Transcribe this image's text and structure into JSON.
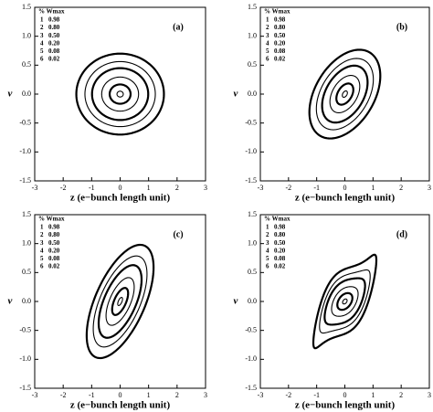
{
  "chart_data": [
    {
      "type": "contour",
      "panel_label": "(a)",
      "xlabel": "z (e−bunch length unit)",
      "ylabel": "ν",
      "xlim": [
        -3,
        3
      ],
      "ylim": [
        -1.5,
        1.5
      ],
      "xticks": [
        -3,
        -2,
        -1,
        0,
        1,
        2,
        3
      ],
      "yticks": [
        {
          "value": -1.5,
          "label": "-1.5"
        },
        {
          "value": -1,
          "label": "-1.0"
        },
        -0.5,
        {
          "value": 0,
          "label": "0.0"
        },
        0.5,
        {
          "value": 1,
          "label": "1.0"
        },
        1.5
      ],
      "legend_title": "% Wmax",
      "level_ids": [
        "1",
        "2",
        "3",
        "4",
        "5",
        "6"
      ],
      "levels": [
        0.98,
        0.8,
        0.5,
        0.2,
        0.08,
        0.02
      ],
      "level_labels": [
        "0.98",
        "0.80",
        "0.50",
        "0.20",
        "0.08",
        "0.02"
      ],
      "color": "#000000"
    },
    {
      "type": "contour",
      "panel_label": "(b)",
      "xlabel": "z (e−bunch length unit)",
      "ylabel": "ν",
      "xlim": [
        -3,
        3
      ],
      "ylim": [
        -1.5,
        1.5
      ],
      "xticks": [
        -3,
        -2,
        -1,
        0,
        1,
        2,
        3
      ],
      "yticks": [
        {
          "value": -1.5,
          "label": "-1.5"
        },
        {
          "value": -1,
          "label": "-1.0"
        },
        -0.5,
        {
          "value": 0,
          "label": "0.0"
        },
        0.5,
        {
          "value": 1,
          "label": "1.0"
        },
        1.5
      ],
      "legend_title": "% Wmax",
      "level_ids": [
        "1",
        "2",
        "3",
        "4",
        "5",
        "6"
      ],
      "levels": [
        0.98,
        0.8,
        0.5,
        0.2,
        0.08,
        0.02
      ],
      "level_labels": [
        "0.98",
        "0.80",
        "0.50",
        "0.20",
        "0.08",
        "0.02"
      ],
      "color": "#000000"
    },
    {
      "type": "contour",
      "panel_label": "(c)",
      "xlabel": "z (e−bunch length unit)",
      "ylabel": "ν",
      "xlim": [
        -3,
        3
      ],
      "ylim": [
        -1.5,
        1.5
      ],
      "xticks": [
        -3,
        -2,
        -1,
        0,
        1,
        2,
        3
      ],
      "yticks": [
        {
          "value": -1.5,
          "label": "-1.5"
        },
        {
          "value": -1,
          "label": "-1.0"
        },
        -0.5,
        {
          "value": 0,
          "label": "0.0"
        },
        0.5,
        {
          "value": 1,
          "label": "1.0"
        },
        1.5
      ],
      "legend_title": "% Wmax",
      "level_ids": [
        "1",
        "2",
        "3",
        "4",
        "5",
        "6"
      ],
      "levels": [
        0.98,
        0.8,
        0.5,
        0.2,
        0.08,
        0.02
      ],
      "level_labels": [
        "0.98",
        "0.80",
        "0.50",
        "0.20",
        "0.08",
        "0.02"
      ],
      "color": "#000000"
    },
    {
      "type": "contour",
      "panel_label": "(d)",
      "xlabel": "z (e−bunch length unit)",
      "ylabel": "ν",
      "xlim": [
        -3,
        3
      ],
      "ylim": [
        -1.5,
        1.5
      ],
      "xticks": [
        -3,
        -2,
        -1,
        0,
        1,
        2,
        3
      ],
      "yticks": [
        {
          "value": -1.5,
          "label": "-1.5"
        },
        {
          "value": -1,
          "label": "-1.0"
        },
        -0.5,
        {
          "value": 0,
          "label": "0.0"
        },
        0.5,
        {
          "value": 1,
          "label": "1.0"
        },
        1.5
      ],
      "legend_title": "% Wmax",
      "level_ids": [
        "1",
        "2",
        "3",
        "4",
        "5",
        "6"
      ],
      "levels": [
        0.98,
        0.8,
        0.5,
        0.2,
        0.08,
        0.02
      ],
      "level_labels": [
        "0.98",
        "0.80",
        "0.50",
        "0.20",
        "0.08",
        "0.02"
      ],
      "color": "#000000"
    }
  ]
}
